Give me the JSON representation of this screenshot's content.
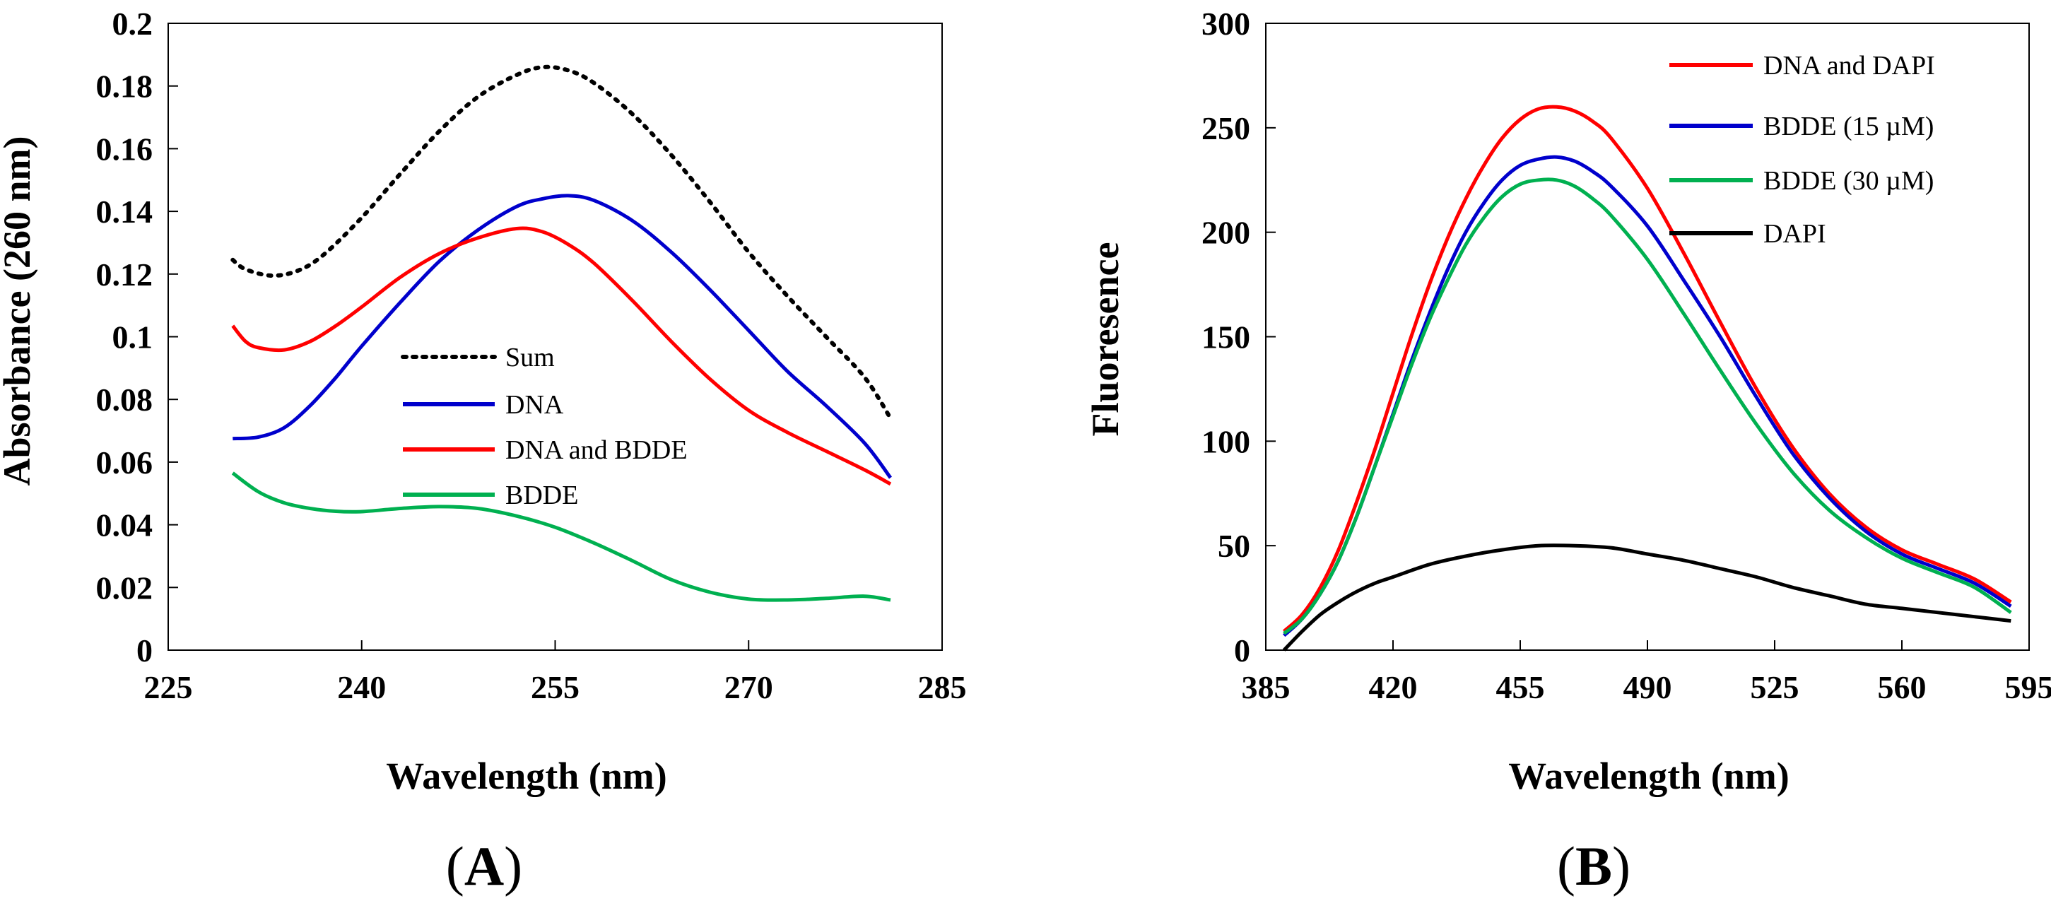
{
  "chart_data": [
    {
      "type": "line",
      "panel_label_open": "(",
      "panel_label_letter": "A",
      "panel_label_close": ")",
      "xlabel": "Wavelength (nm)",
      "ylabel": "Absorbance (260 nm)",
      "xlim": [
        225,
        285
      ],
      "ylim": [
        0,
        0.2
      ],
      "xticks": [
        225,
        240,
        255,
        270,
        285
      ],
      "xtick_labels": [
        "225",
        "240",
        "255",
        "270",
        "285"
      ],
      "yticks": [
        0,
        0.02,
        0.04,
        0.06,
        0.08,
        0.1,
        0.12,
        0.14,
        0.16,
        0.18,
        0.2
      ],
      "ytick_labels": [
        "0",
        "0.02",
        "0.04",
        "0.06",
        "0.08",
        "0.1",
        "0.12",
        "0.14",
        "0.16",
        "0.18",
        "0.2"
      ],
      "grid": false,
      "legend_position": "center-right",
      "series": [
        {
          "name": "Sum",
          "color": "#000000",
          "style": "dotted",
          "x": [
            230,
            231,
            233,
            235,
            237,
            240,
            243,
            246,
            249,
            252,
            254,
            256,
            258,
            261,
            264,
            267,
            270,
            273,
            276,
            279,
            281
          ],
          "y": [
            0.1245,
            0.1215,
            0.1195,
            0.121,
            0.126,
            0.138,
            0.152,
            0.1655,
            0.1765,
            0.1835,
            0.186,
            0.185,
            0.181,
            0.171,
            0.158,
            0.143,
            0.127,
            0.113,
            0.1,
            0.087,
            0.074
          ]
        },
        {
          "name": "DNA",
          "color": "#0000cc",
          "style": "solid",
          "x": [
            230,
            232,
            234,
            236,
            238,
            240,
            243,
            246,
            249,
            252,
            254,
            256,
            258,
            261,
            264,
            267,
            270,
            273,
            276,
            279,
            281
          ],
          "y": [
            0.0675,
            0.068,
            0.071,
            0.078,
            0.087,
            0.097,
            0.111,
            0.124,
            0.134,
            0.1415,
            0.144,
            0.145,
            0.1435,
            0.137,
            0.127,
            0.115,
            0.102,
            0.089,
            0.078,
            0.066,
            0.055
          ]
        },
        {
          "name": "DNA and BDDE",
          "color": "#ff0000",
          "style": "solid",
          "x": [
            230,
            231,
            232,
            234,
            236,
            238,
            240,
            243,
            246,
            249,
            252,
            254,
            256,
            258,
            261,
            264,
            267,
            270,
            273,
            276,
            279,
            281
          ],
          "y": [
            0.1035,
            0.0985,
            0.0965,
            0.0958,
            0.0985,
            0.1035,
            0.1095,
            0.119,
            0.1265,
            0.1315,
            0.1345,
            0.1335,
            0.1295,
            0.1235,
            0.1115,
            0.0985,
            0.0865,
            0.0765,
            0.0695,
            0.0635,
            0.0575,
            0.053
          ]
        },
        {
          "name": "BDDE",
          "color": "#00b050",
          "style": "solid",
          "x": [
            230,
            232,
            234,
            236,
            238,
            240,
            243,
            246,
            249,
            252,
            255,
            258,
            261,
            264,
            267,
            270,
            273,
            276,
            279,
            281
          ],
          "y": [
            0.0565,
            0.0505,
            0.047,
            0.0452,
            0.0443,
            0.0442,
            0.0452,
            0.0458,
            0.0452,
            0.0428,
            0.0392,
            0.0342,
            0.0285,
            0.0225,
            0.0185,
            0.0163,
            0.016,
            0.0165,
            0.0172,
            0.016
          ]
        }
      ]
    },
    {
      "type": "line",
      "panel_label_open": "(",
      "panel_label_letter": "B",
      "panel_label_close": ")",
      "xlabel": "Wavelength (nm)",
      "ylabel": "Fluoresence",
      "xlim": [
        385,
        595
      ],
      "ylim": [
        0,
        300
      ],
      "xticks": [
        385,
        420,
        455,
        490,
        525,
        560,
        595
      ],
      "xtick_labels": [
        "385",
        "420",
        "455",
        "490",
        "525",
        "560",
        "595"
      ],
      "yticks": [
        0,
        50,
        100,
        150,
        200,
        250,
        300
      ],
      "ytick_labels": [
        "0",
        "50",
        "100",
        "150",
        "200",
        "250",
        "300"
      ],
      "grid": false,
      "legend_position": "top-right",
      "series": [
        {
          "name": "DNA and DAPI",
          "color": "#ff0000",
          "style": "solid",
          "x": [
            390,
            395,
            400,
            405,
            410,
            415,
            420,
            425,
            430,
            435,
            440,
            445,
            450,
            455,
            460,
            465,
            470,
            475,
            480,
            490,
            500,
            510,
            520,
            530,
            540,
            550,
            560,
            570,
            580,
            590
          ],
          "y": [
            9,
            17,
            30,
            48,
            71,
            96,
            123,
            150,
            175,
            197,
            216,
            232,
            245,
            254,
            259,
            260,
            258,
            253,
            245,
            221,
            190,
            157,
            125,
            97,
            75,
            59,
            48,
            41,
            34,
            23
          ]
        },
        {
          "name": "BDDE (15 µM)",
          "color": "#0000cc",
          "style": "solid",
          "x": [
            390,
            395,
            400,
            405,
            410,
            415,
            420,
            425,
            430,
            435,
            440,
            445,
            450,
            455,
            460,
            465,
            470,
            475,
            480,
            490,
            500,
            510,
            520,
            530,
            540,
            550,
            560,
            570,
            580,
            590
          ],
          "y": [
            7,
            15,
            27,
            43,
            64,
            88,
            113,
            138,
            161,
            182,
            200,
            214,
            225,
            232,
            235,
            236,
            234,
            229,
            222,
            203,
            177,
            150,
            121,
            94,
            73,
            57,
            46,
            39,
            32,
            21
          ]
        },
        {
          "name": "BDDE (30 µM)",
          "color": "#00b050",
          "style": "solid",
          "x": [
            390,
            395,
            400,
            405,
            410,
            415,
            420,
            425,
            430,
            435,
            440,
            445,
            450,
            455,
            460,
            465,
            470,
            475,
            480,
            490,
            500,
            510,
            520,
            530,
            540,
            550,
            560,
            570,
            580,
            590
          ],
          "y": [
            8,
            15,
            27,
            43,
            64,
            88,
            112,
            136,
            158,
            177,
            194,
            207,
            217,
            223,
            225,
            225,
            222,
            216,
            208,
            187,
            161,
            134,
            108,
            85,
            67,
            54,
            44,
            37,
            30,
            18
          ]
        },
        {
          "name": "DAPI",
          "color": "#000000",
          "style": "solid",
          "x": [
            390,
            395,
            400,
            405,
            410,
            415,
            420,
            430,
            440,
            450,
            460,
            470,
            480,
            490,
            500,
            510,
            520,
            530,
            540,
            550,
            560,
            570,
            580,
            590
          ],
          "y": [
            0,
            9,
            17,
            23,
            28,
            32,
            35,
            41,
            45,
            48,
            50,
            50,
            49,
            46,
            43,
            39,
            35,
            30,
            26,
            22,
            20,
            18,
            16,
            14
          ]
        }
      ]
    }
  ]
}
